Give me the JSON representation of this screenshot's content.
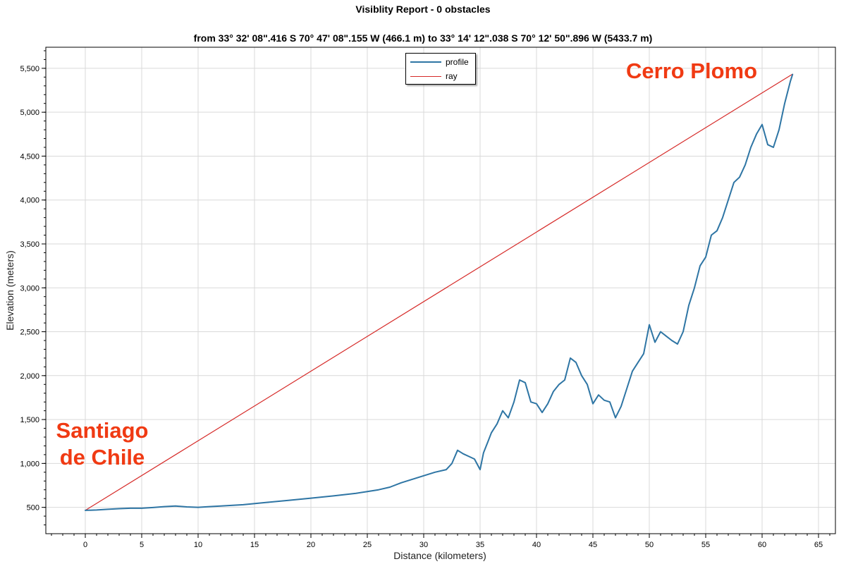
{
  "chart_data": {
    "type": "line",
    "title": "Visiblity Report - 0 obstacles",
    "subtitle": "from 33° 32' 08\".416 S 70° 47' 08\".155 W (466.1 m) to 33° 14' 12\".038 S 70° 12' 50\".896 W (5433.7 m)",
    "xlabel": "Distance (kilometers)",
    "ylabel": "Elevation (meters)",
    "xlim": [
      -3.5,
      66.5
    ],
    "ylim": [
      200,
      5740
    ],
    "xticks": [
      0,
      5,
      10,
      15,
      20,
      25,
      30,
      35,
      40,
      45,
      50,
      55,
      60,
      65
    ],
    "yticks": [
      500,
      1000,
      1500,
      2000,
      2500,
      3000,
      3500,
      4000,
      4500,
      5000,
      5500
    ],
    "ytick_labels": [
      "500",
      "1,000",
      "1,500",
      "2,000",
      "2,500",
      "3,000",
      "3,500",
      "4,000",
      "4,500",
      "5,000",
      "5,500"
    ],
    "grid": true,
    "legend_position": "top-center",
    "series": [
      {
        "name": "profile",
        "color": "#2e75a4",
        "x": [
          0,
          1,
          2,
          3,
          4,
          5,
          6,
          7,
          8,
          9,
          10,
          11,
          12,
          14,
          16,
          18,
          20,
          22,
          24,
          25,
          26,
          27,
          28,
          29,
          30,
          31,
          32,
          32.5,
          33,
          33.5,
          34,
          34.5,
          35,
          35.3,
          35.7,
          36,
          36.5,
          37,
          37.5,
          38,
          38.5,
          39,
          39.5,
          40,
          40.5,
          41,
          41.5,
          42,
          42.5,
          43,
          43.5,
          44,
          44.5,
          45,
          45.5,
          46,
          46.5,
          47,
          47.5,
          48,
          48.5,
          49,
          49.5,
          50,
          50.5,
          51,
          51.5,
          52,
          52.5,
          53,
          53.5,
          54,
          54.5,
          55,
          55.5,
          56,
          56.5,
          57,
          57.5,
          58,
          58.5,
          59,
          59.5,
          60,
          60.5,
          61,
          61.5,
          62,
          62.5,
          62.7
        ],
        "y": [
          466,
          470,
          478,
          485,
          490,
          490,
          498,
          508,
          515,
          505,
          500,
          508,
          515,
          530,
          555,
          580,
          605,
          630,
          660,
          680,
          700,
          730,
          780,
          820,
          860,
          900,
          930,
          1000,
          1150,
          1110,
          1080,
          1050,
          930,
          1120,
          1250,
          1350,
          1450,
          1600,
          1520,
          1700,
          1950,
          1920,
          1700,
          1680,
          1580,
          1680,
          1820,
          1900,
          1950,
          2200,
          2150,
          2000,
          1900,
          1680,
          1780,
          1720,
          1700,
          1520,
          1650,
          1850,
          2050,
          2150,
          2250,
          2580,
          2380,
          2500,
          2450,
          2400,
          2360,
          2500,
          2800,
          3000,
          3250,
          3350,
          3600,
          3650,
          3800,
          4000,
          4200,
          4260,
          4400,
          4600,
          4750,
          4860,
          4630,
          4600,
          4800,
          5100,
          5350,
          5430
        ]
      },
      {
        "name": "ray",
        "color": "#d62a28",
        "x": [
          0,
          62.7
        ],
        "y": [
          466.1,
          5433.7
        ]
      }
    ],
    "annotations": [
      {
        "id": "cerro",
        "lines": [
          "Cerro Plomo"
        ],
        "color": "#f03a13"
      },
      {
        "id": "santiago",
        "lines": [
          "Santiago",
          "de Chile"
        ],
        "color": "#f03a13"
      }
    ]
  }
}
